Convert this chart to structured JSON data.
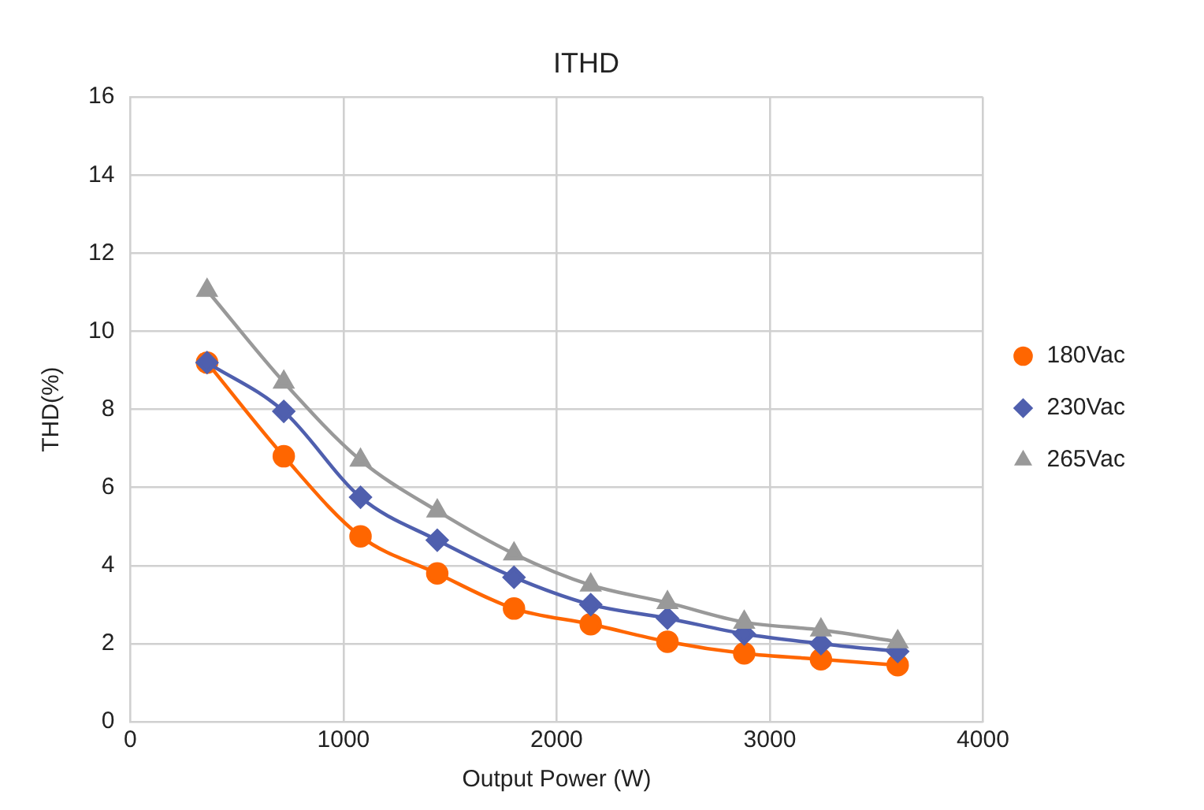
{
  "chart_data": {
    "type": "line",
    "title": "ITHD",
    "xlabel": "Output Power (W)",
    "ylabel": "THD(%)",
    "x": [
      360,
      720,
      1080,
      1440,
      1800,
      2160,
      2520,
      2880,
      3240,
      3600
    ],
    "series": [
      {
        "name": "180Vac",
        "color": "#ff6600",
        "marker": "circle",
        "values": [
          9.2,
          6.8,
          4.75,
          3.8,
          2.9,
          2.5,
          2.05,
          1.75,
          1.6,
          1.45
        ]
      },
      {
        "name": "230Vac",
        "color": "#4f5fae",
        "marker": "diamond",
        "values": [
          9.2,
          7.95,
          5.75,
          4.65,
          3.7,
          3.0,
          2.65,
          2.25,
          2.0,
          1.8
        ]
      },
      {
        "name": "265Vac",
        "color": "#999999",
        "marker": "triangle",
        "values": [
          11.05,
          8.7,
          6.7,
          5.4,
          4.3,
          3.5,
          3.05,
          2.55,
          2.35,
          2.05
        ]
      }
    ],
    "xlim": [
      0,
      4000
    ],
    "xticks": [
      0,
      1000,
      2000,
      3000,
      4000
    ],
    "ylim": [
      0,
      16
    ],
    "yticks": [
      0,
      2,
      4,
      6,
      8,
      10,
      12,
      14,
      16
    ],
    "grid": true,
    "legend": "right",
    "line_style": "solid"
  }
}
